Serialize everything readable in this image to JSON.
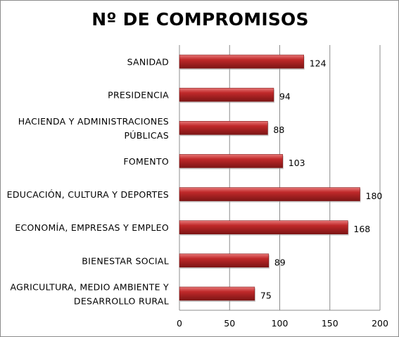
{
  "chart_data": {
    "type": "bar",
    "orientation": "horizontal",
    "title": "Nº DE COMPROMISOS",
    "categories": [
      "SANIDAD",
      "PRESIDENCIA",
      "HACIENDA Y ADMINISTRACIONES PÚBLICAS",
      "FOMENTO",
      "EDUCACIÓN, CULTURA Y DEPORTES",
      "ECONOMÍA, EMPRESAS Y EMPLEO",
      "BIENESTAR SOCIAL",
      "AGRICULTURA, MEDIO AMBIENTE Y DESARROLLO RURAL"
    ],
    "category_lines": [
      [
        "SANIDAD"
      ],
      [
        "PRESIDENCIA"
      ],
      [
        "HACIENDA Y ADMINISTRACIONES",
        "PÚBLICAS"
      ],
      [
        "FOMENTO"
      ],
      [
        "EDUCACIÓN, CULTURA Y DEPORTES"
      ],
      [
        "ECONOMÍA, EMPRESAS Y EMPLEO"
      ],
      [
        "BIENESTAR SOCIAL"
      ],
      [
        "AGRICULTURA, MEDIO AMBIENTE Y",
        "DESARROLLO RURAL"
      ]
    ],
    "values": [
      124,
      94,
      88,
      103,
      180,
      168,
      89,
      75
    ],
    "data_labels": [
      "124",
      "94",
      "88",
      "103",
      "180",
      "168",
      "89",
      "75"
    ],
    "xlim": [
      0,
      200
    ],
    "xticks": [
      0,
      50,
      100,
      150,
      200
    ],
    "xtick_labels": [
      "0",
      "50",
      "100",
      "150",
      "200"
    ],
    "grid": "vertical",
    "legend": "none",
    "colors": {
      "bar_fill": "#c0292a",
      "bar_highlight": "#e87878",
      "bar_shadow": "#7d1515",
      "grid": "#8c8c8c",
      "axis": "#8c8c8c"
    }
  }
}
